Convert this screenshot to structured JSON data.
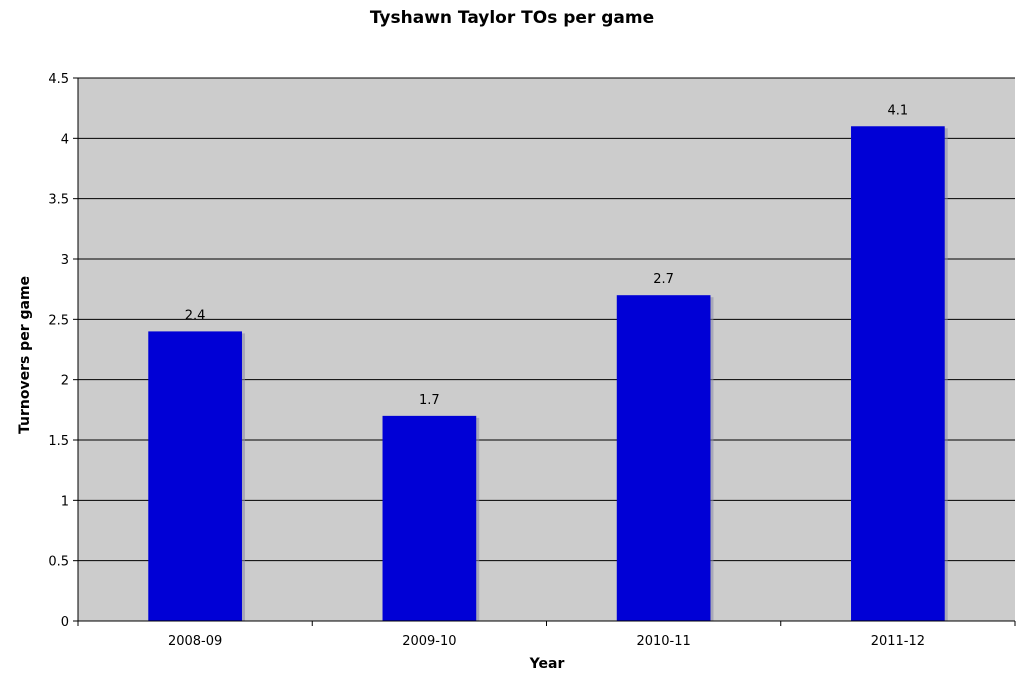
{
  "chart_data": {
    "type": "bar",
    "title": "Tyshawn Taylor TOs per game",
    "xlabel": "Year",
    "ylabel": "Turnovers per game",
    "categories": [
      "2008-09",
      "2009-10",
      "2010-11",
      "2011-12"
    ],
    "values": [
      2.4,
      1.7,
      2.7,
      4.1
    ],
    "data_labels": [
      "2.4",
      "1.7",
      "2.7",
      "4.1"
    ],
    "ylim": [
      0,
      4.5
    ],
    "yticks": [
      "0",
      "0.5",
      "1",
      "1.5",
      "2",
      "2.5",
      "3",
      "3.5",
      "4",
      "4.5"
    ],
    "grid": true,
    "legend": "none",
    "colors": {
      "bar": "#0000d6",
      "plot_background": "#cccccc",
      "gridline": "#000000"
    }
  }
}
